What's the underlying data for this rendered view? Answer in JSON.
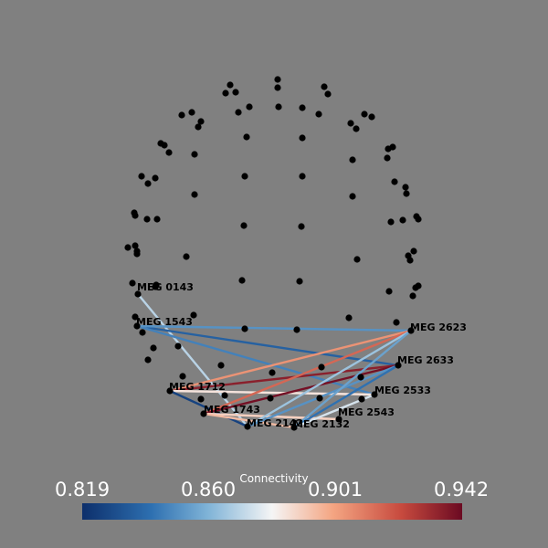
{
  "colorbar": {
    "title": "Connectivity",
    "ticks": [
      "0.819",
      "0.860",
      "0.901",
      "0.942"
    ],
    "colors": [
      "#0d2f6b",
      "#2d6fb0",
      "#7fb3d7",
      "#f5f5f5",
      "#f4a582",
      "#c74a3e",
      "#6b0a22"
    ],
    "range": [
      0.819,
      0.942
    ]
  },
  "labels": {
    "meg0143": "MEG 0143",
    "meg1543": "MEG 1543",
    "meg1712": "MEG 1712",
    "meg1743": "MEG 1743",
    "meg2142": "MEG 2142",
    "meg2132": "MEG 2132",
    "meg2543": "MEG 2543",
    "meg2533": "MEG 2533",
    "meg2633": "MEG 2633",
    "meg2623": "MEG 2623"
  },
  "connections": [
    {
      "a": "MEG 0143",
      "b": "MEG 2142",
      "value": 0.87
    },
    {
      "a": "MEG 1543",
      "b": "MEG 2633",
      "value": 0.835
    },
    {
      "a": "MEG 1543",
      "b": "MEG 2533",
      "value": 0.845
    },
    {
      "a": "MEG 1543",
      "b": "MEG 2623",
      "value": 0.85
    },
    {
      "a": "MEG 1712",
      "b": "MEG 2623",
      "value": 0.905
    },
    {
      "a": "MEG 1712",
      "b": "MEG 2633",
      "value": 0.935
    },
    {
      "a": "MEG 1712",
      "b": "MEG 2533",
      "value": 0.885
    },
    {
      "a": "MEG 1712",
      "b": "MEG 2142",
      "value": 0.825
    },
    {
      "a": "MEG 1743",
      "b": "MEG 2623",
      "value": 0.915
    },
    {
      "a": "MEG 1743",
      "b": "MEG 2633",
      "value": 0.94
    },
    {
      "a": "MEG 1743",
      "b": "MEG 2543",
      "value": 0.89
    },
    {
      "a": "MEG 1743",
      "b": "MEG 2132",
      "value": 0.895
    },
    {
      "a": "MEG 2142",
      "b": "MEG 2623",
      "value": 0.865
    },
    {
      "a": "MEG 2142",
      "b": "MEG 2633",
      "value": 0.85
    },
    {
      "a": "MEG 2132",
      "b": "MEG 2623",
      "value": 0.855
    },
    {
      "a": "MEG 2132",
      "b": "MEG 2633",
      "value": 0.84
    },
    {
      "a": "MEG 2132",
      "b": "MEG 2533",
      "value": 0.875
    }
  ]
}
